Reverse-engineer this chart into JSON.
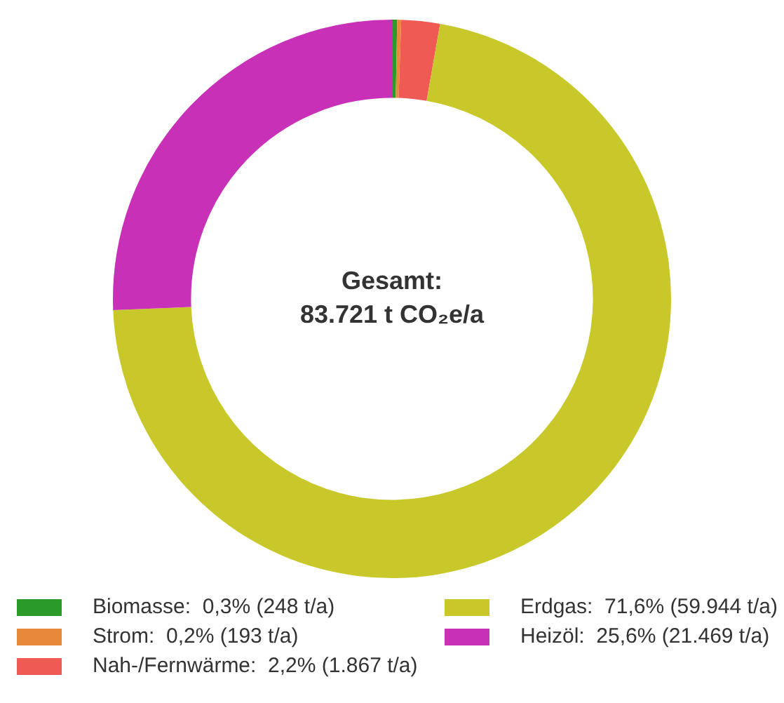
{
  "chart_data": {
    "type": "donut",
    "annotations": [
      "Gesamt:",
      "83.721 t CO₂e/a"
    ],
    "categories": [
      "Biomasse:  0,3% (248 t/a)",
      "Strom:  0,2% (193 t/a)",
      "Nah-/Fernwärme:  2,2% (1.867 t/a)",
      "Erdgas:  71,6% (59.944 t/a)",
      "Heizöl:  25,6% (21.469 t/a)"
    ],
    "values": [
      248,
      193,
      1867,
      59944,
      21469
    ],
    "colors": [
      "#2a9a2a",
      "#e8883a",
      "#f05a55",
      "#c8c82a",
      "#c930b8"
    ],
    "legend": "bottom"
  }
}
